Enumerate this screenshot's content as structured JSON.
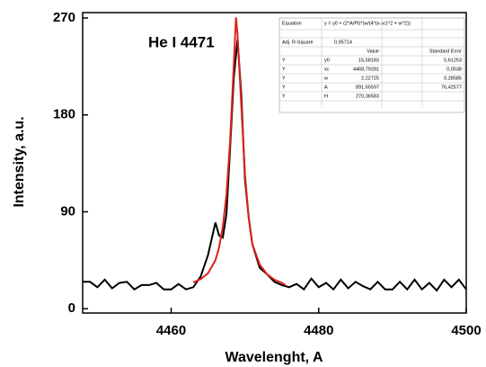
{
  "chart_data": {
    "type": "line",
    "annotation": "He I 4471",
    "x_label": "Wavelenght, A",
    "y_label": "Intensity, a.u.",
    "xlim": [
      4448,
      4500
    ],
    "ylim": [
      -4,
      275
    ],
    "xticks": [
      4460,
      4480,
      4500
    ],
    "yticks": [
      0,
      90,
      180,
      270
    ],
    "grid": false,
    "series": [
      {
        "color": "#000000",
        "x": [
          4448,
          4449,
          4450,
          4451,
          4452,
          4453,
          4454,
          4455,
          4456,
          4457,
          4458,
          4459,
          4460,
          4461,
          4462,
          4463,
          4464,
          4465,
          4466,
          4466.5,
          4467,
          4467.5,
          4468,
          4468.5,
          4469,
          4469.5,
          4470,
          4470.5,
          4471,
          4472,
          4473,
          4474,
          4475,
          4476,
          4477,
          4478,
          4479,
          4480,
          4481,
          4482,
          4483,
          4484,
          4485,
          4486,
          4487,
          4488,
          4489,
          4490,
          4491,
          4492,
          4493,
          4494,
          4495,
          4496,
          4497,
          4498,
          4499,
          4500
        ],
        "values": [
          25,
          25,
          20,
          27,
          19,
          24,
          25,
          18,
          22,
          22,
          24,
          18,
          18,
          23,
          18,
          20,
          30,
          50,
          80,
          68,
          66,
          88,
          150,
          215,
          250,
          200,
          120,
          85,
          60,
          38,
          32,
          25,
          22,
          20,
          23,
          18,
          28,
          20,
          24,
          18,
          27,
          19,
          25,
          21,
          18,
          25,
          18,
          18,
          25,
          18,
          27,
          18,
          24,
          17,
          27,
          20,
          27,
          18
        ]
      },
      {
        "color": "#e0201b",
        "x": [
          4463,
          4464,
          4465,
          4466,
          4466.5,
          4467,
          4467.5,
          4468,
          4468.5,
          4468.79,
          4469,
          4469.5,
          4470,
          4470.5,
          4471,
          4472,
          4473,
          4474,
          4475,
          4475.5
        ],
        "values": [
          24.5,
          27.5,
          33,
          45,
          57,
          76,
          106,
          157,
          228,
          270.5,
          255,
          190,
          125,
          85,
          60,
          41,
          32,
          27,
          24,
          22
        ]
      }
    ]
  },
  "table": {
    "equation": [
      "Equation",
      "y = y0 + (2*A/PI)*(w/(4*(x-xc)^2 + w^2))"
    ],
    "r2": [
      "Adj. R-Square",
      "0,95714"
    ],
    "header": [
      "Value",
      "Standard Error"
    ],
    "rows": [
      [
        "Y",
        "y0",
        "15,58183",
        "5,61253"
      ],
      [
        "Y",
        "xc",
        "4468,79281",
        "0,0538"
      ],
      [
        "Y",
        "w",
        "2,22725",
        "0,28585"
      ],
      [
        "Y",
        "A",
        "891,65597",
        "76,42577"
      ],
      [
        "Y",
        "H",
        "270,36583"
      ]
    ]
  }
}
